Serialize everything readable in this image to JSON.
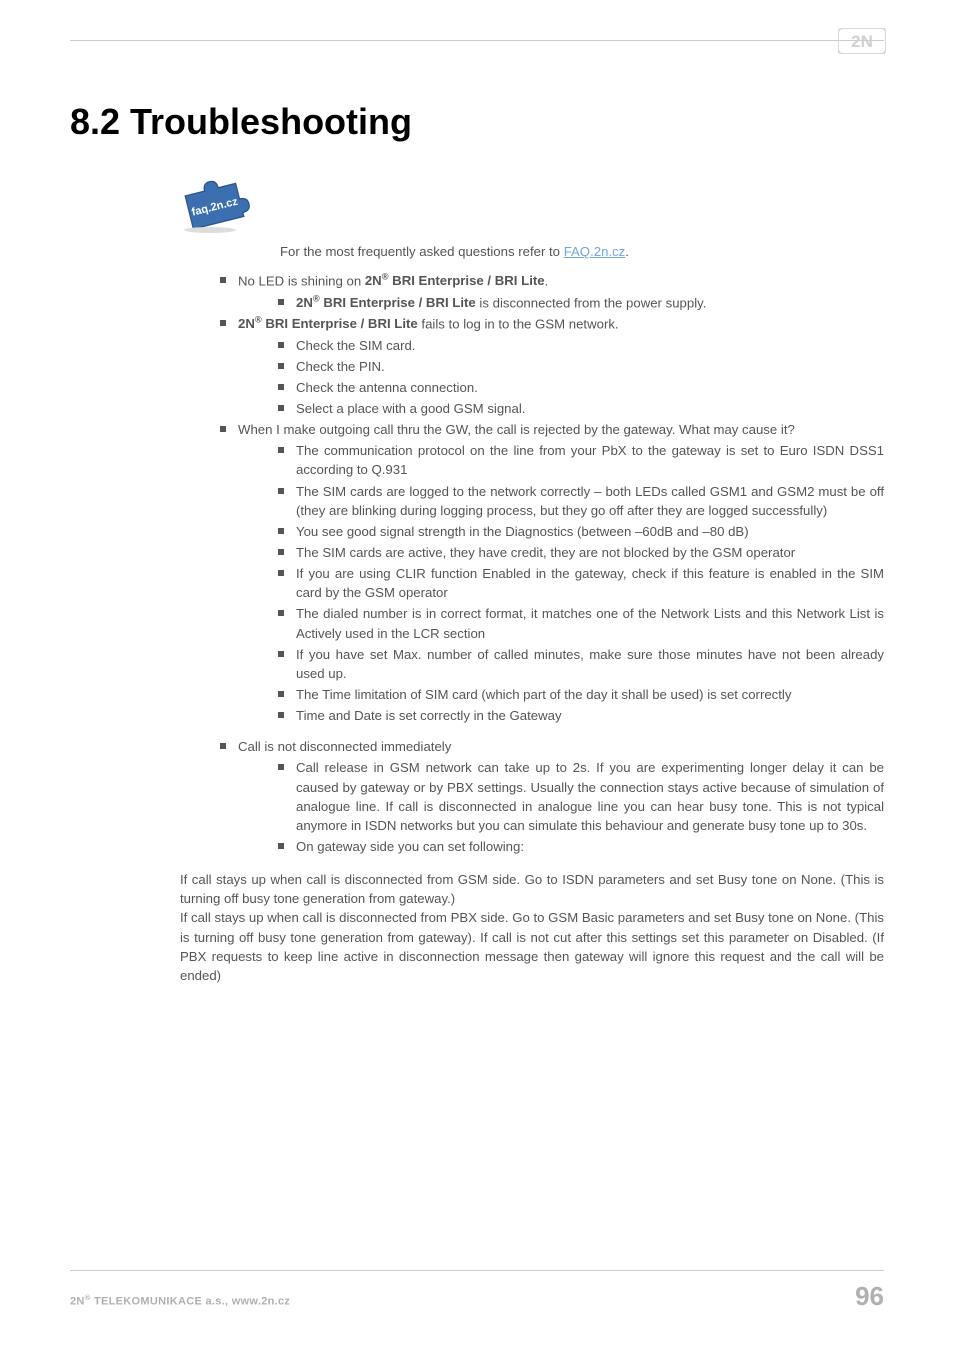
{
  "logo": {
    "text": "2N",
    "color": "#c9c9c9"
  },
  "title": "8.2 Troubleshooting",
  "faq_intro": "For the most frequently asked questions refer to ",
  "faq_link_text": "FAQ.2n.cz",
  "faq_period": ".",
  "puzzle_label": "faq.2n.cz",
  "items": [
    {
      "pre": "No LED is shining on ",
      "bold": "2N® BRI Enterprise / BRI Lite",
      "post": ".",
      "sub": [
        {
          "bold_first": "2N® BRI Enterprise / BRI Lite",
          "rest": " is disconnected from the power supply."
        }
      ]
    },
    {
      "bold_first": "2N® BRI Enterprise / BRI Lite",
      "rest": " fails to log in to the GSM network.",
      "sub": [
        {
          "text": "Check the SIM card."
        },
        {
          "text": "Check the PIN."
        },
        {
          "text": "Check the antenna connection."
        },
        {
          "text": "Select a place with a good GSM signal."
        }
      ]
    },
    {
      "text": "When I make outgoing call thru the GW, the call is rejected by the gateway. What may cause it?",
      "sub": [
        {
          "text": "The communication protocol on the line from your PbX to the gateway is set to Euro ISDN DSS1 according to Q.931"
        },
        {
          "text": "The SIM cards are logged to the network correctly – both LEDs called GSM1 and GSM2 must be off (they are blinking during logging process, but they go off after they are logged successfully)"
        },
        {
          "text": "You see good signal strength in the Diagnostics (between –60dB and –80 dB)"
        },
        {
          "text": "The SIM cards are active, they have credit, they are not blocked by the GSM operator"
        },
        {
          "text": "If you are using CLIR function Enabled in the gateway, check if this feature is enabled in the SIM card by the GSM operator"
        },
        {
          "text": "The dialed number is in correct format, it matches one of the Network Lists and this Network List is Actively used in the LCR section"
        },
        {
          "text": "If you have set Max. number of called minutes, make sure those minutes have not been already used up."
        },
        {
          "text": "The Time limitation of SIM card (which part of the day it shall be used) is set correctly"
        },
        {
          "text": "Time and Date is set correctly in the Gateway"
        }
      ]
    },
    {
      "text": "Call is not disconnected immediately",
      "margin_top": true,
      "sub": [
        {
          "text": "Call release in GSM network can take up to 2s. If you are experimenting longer delay it can be caused by gateway or by PBX settings. Usually the connection stays active because of simulation of analogue line. If call is disconnected in analogue line you can hear busy tone. This is not typical anymore in ISDN networks but you can simulate this behaviour and generate busy tone up to 30s."
        },
        {
          "text": "On gateway side you can set following:"
        }
      ]
    }
  ],
  "para1": "If call stays up when call is disconnected from GSM side. Go to ISDN parameters and set Busy tone on None. (This is turning off busy tone generation from gateway.)",
  "para2": "If call stays up when call is disconnected from PBX side. Go to GSM Basic parameters and set Busy tone on None. (This is turning off busy tone generation from gateway). If call is not cut after this settings set this parameter on Disabled. (If PBX requests to keep line active in disconnection message then gateway will ignore this request and the call will be ended)",
  "footer": {
    "company_pre": "2N",
    "company_post": " TELEKOMUNIKACE a.s., www.2n.cz",
    "page": "96"
  }
}
